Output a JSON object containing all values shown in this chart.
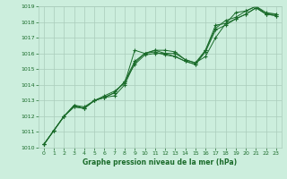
{
  "title": "Graphe pression niveau de la mer (hPa)",
  "bg_color": "#cceedd",
  "grid_color": "#aaccbb",
  "line_color": "#1a6b2a",
  "xlim": [
    -0.5,
    23.5
  ],
  "ylim": [
    1010,
    1019
  ],
  "xticks": [
    0,
    1,
    2,
    3,
    4,
    5,
    6,
    7,
    8,
    9,
    10,
    11,
    12,
    13,
    14,
    15,
    16,
    17,
    18,
    19,
    20,
    21,
    22,
    23
  ],
  "yticks": [
    1010,
    1011,
    1012,
    1013,
    1014,
    1015,
    1016,
    1017,
    1018,
    1019
  ],
  "series": [
    [
      1010.2,
      1011.1,
      1012.0,
      1012.7,
      1012.6,
      1013.0,
      1013.3,
      1013.6,
      1014.1,
      1016.2,
      1016.0,
      1016.2,
      1016.2,
      1016.1,
      1015.6,
      1015.4,
      1016.2,
      1017.8,
      1017.9,
      1018.6,
      1018.7,
      1019.0,
      1018.5,
      1018.5
    ],
    [
      1010.2,
      1011.1,
      1012.0,
      1012.7,
      1012.5,
      1013.0,
      1013.2,
      1013.5,
      1014.2,
      1015.5,
      1016.0,
      1016.2,
      1016.0,
      1016.0,
      1015.6,
      1015.4,
      1015.8,
      1017.0,
      1017.9,
      1018.2,
      1018.5,
      1018.9,
      1018.5,
      1018.4
    ],
    [
      1010.2,
      1011.1,
      1012.0,
      1012.6,
      1012.5,
      1013.0,
      1013.2,
      1013.5,
      1014.2,
      1015.3,
      1015.9,
      1016.0,
      1016.0,
      1015.8,
      1015.5,
      1015.3,
      1016.1,
      1017.5,
      1017.8,
      1018.2,
      1018.5,
      1018.9,
      1018.5,
      1018.4
    ],
    [
      1010.2,
      1011.1,
      1012.0,
      1012.6,
      1012.5,
      1013.0,
      1013.2,
      1013.3,
      1014.0,
      1015.4,
      1016.0,
      1016.1,
      1015.9,
      1015.8,
      1015.5,
      1015.3,
      1016.2,
      1017.6,
      1018.1,
      1018.3,
      1018.7,
      1019.0,
      1018.6,
      1018.5
    ]
  ]
}
